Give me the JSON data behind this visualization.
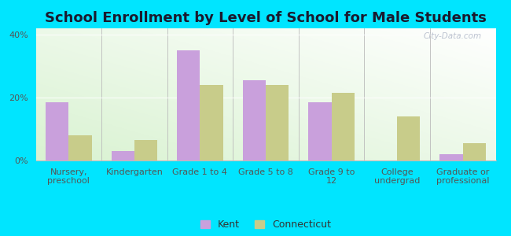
{
  "title": "School Enrollment by Level of School for Male Students",
  "categories": [
    "Nursery,\npreschool",
    "Kindergarten",
    "Grade 1 to 4",
    "Grade 5 to 8",
    "Grade 9 to\n12",
    "College\nundergrad",
    "Graduate or\nprofessional"
  ],
  "kent_values": [
    18.5,
    3.0,
    35.0,
    25.5,
    18.5,
    0.0,
    2.0
  ],
  "connecticut_values": [
    8.0,
    6.5,
    24.0,
    24.0,
    21.5,
    14.0,
    5.5
  ],
  "kent_color": "#c9a0dc",
  "connecticut_color": "#c8cc8a",
  "ylim": [
    0,
    42
  ],
  "yticks": [
    0,
    20,
    40
  ],
  "ytick_labels": [
    "0%",
    "20%",
    "40%"
  ],
  "background_color": "#00e5ff",
  "legend_kent": "Kent",
  "legend_connecticut": "Connecticut",
  "watermark": "City-Data.com",
  "bar_width": 0.35,
  "title_fontsize": 13,
  "title_color": "#1a1a2e",
  "tick_fontsize": 8.0
}
